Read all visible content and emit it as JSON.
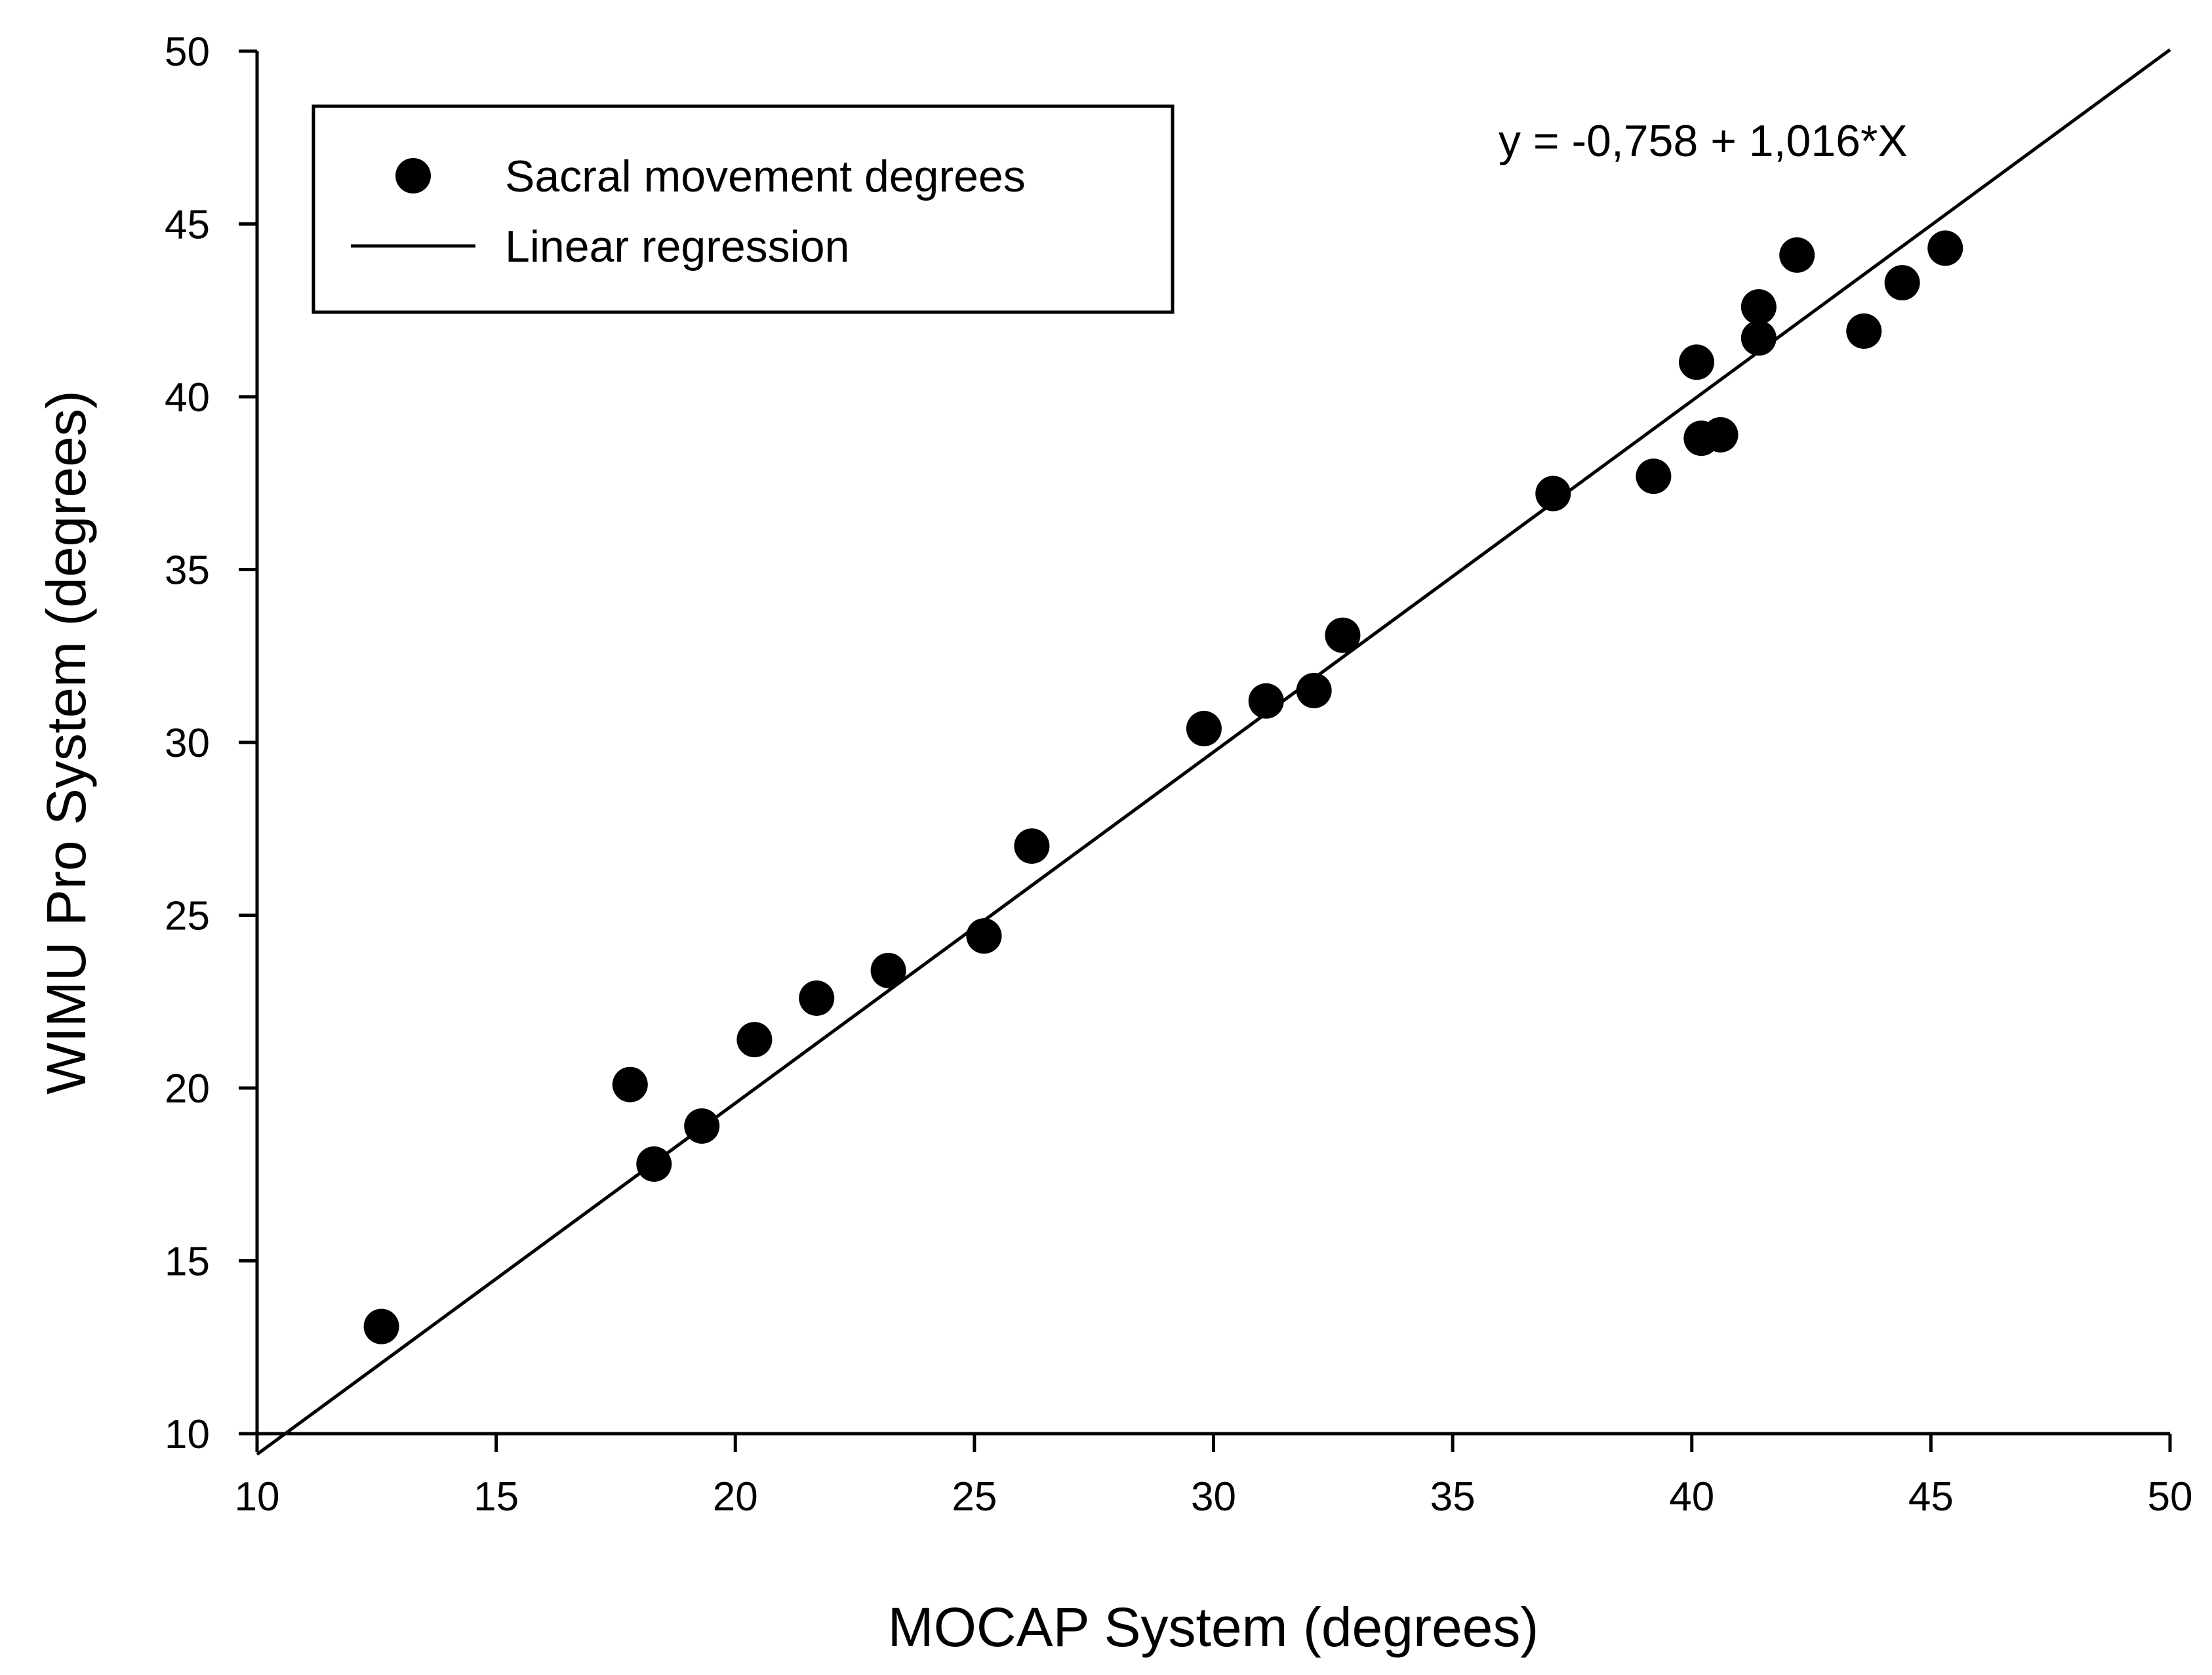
{
  "chart_data": {
    "type": "scatter",
    "title": "",
    "xlabel": "MOCAP System (degrees)",
    "ylabel": "WIMU Pro System (degrees)",
    "xlim": [
      10,
      50
    ],
    "ylim": [
      10,
      50
    ],
    "xticks": [
      10,
      15,
      20,
      25,
      30,
      35,
      40,
      45,
      50
    ],
    "yticks": [
      10,
      15,
      20,
      25,
      30,
      35,
      40,
      45,
      50
    ],
    "xtick_labels": [
      "10",
      "15",
      "20",
      "25",
      "30",
      "35",
      "40",
      "45",
      "50"
    ],
    "ytick_labels": [
      "10",
      "15",
      "20",
      "25",
      "30",
      "35",
      "40",
      "45",
      "50"
    ],
    "grid": false,
    "legend_position": "top-left",
    "series": [
      {
        "name": "Sacral movement degrees",
        "kind": "scatter",
        "color": "#000000",
        "x": [
          12.6,
          17.8,
          18.3,
          19.3,
          20.4,
          21.7,
          23.2,
          25.2,
          26.2,
          29.8,
          31.1,
          32.1,
          32.7,
          37.1,
          39.2,
          40.1,
          40.2,
          40.6,
          41.4,
          41.4,
          42.2,
          43.6,
          44.4,
          45.3
        ],
        "y": [
          13.1,
          20.1,
          17.8,
          18.9,
          21.4,
          22.6,
          23.4,
          24.4,
          27.0,
          30.4,
          31.2,
          31.5,
          33.1,
          37.2,
          37.7,
          41.0,
          38.8,
          38.9,
          42.6,
          41.7,
          44.1,
          41.9,
          43.3,
          44.3
        ]
      },
      {
        "name": "Linear regression",
        "kind": "line",
        "color": "#000000",
        "intercept": -0.758,
        "slope": 1.016,
        "x_range": [
          10,
          50
        ]
      }
    ],
    "annotations": [
      {
        "text": "y = -0,758 + 1,016*X",
        "placement": "top-right"
      }
    ]
  }
}
